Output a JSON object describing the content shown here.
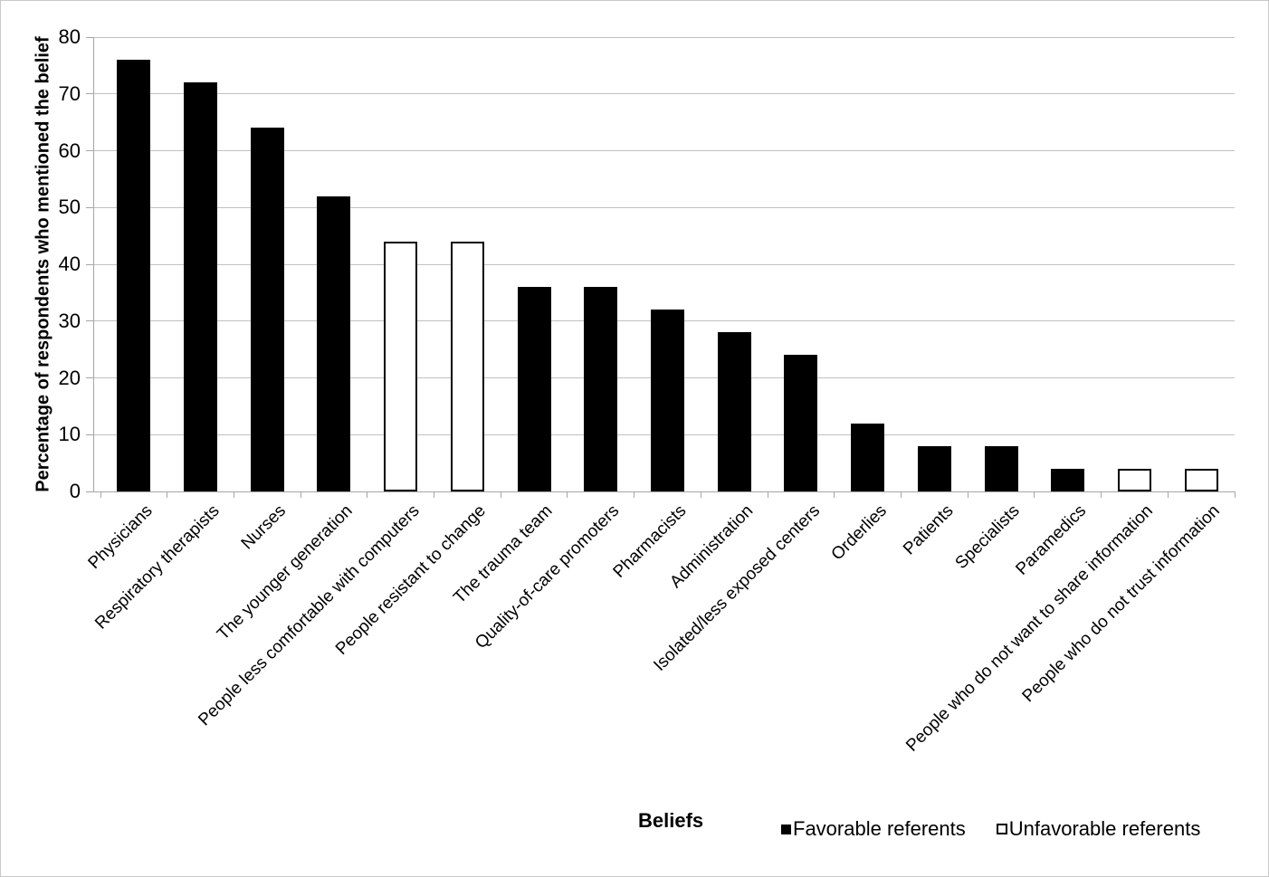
{
  "chart_data": {
    "type": "bar",
    "title": "",
    "xlabel": "Beliefs",
    "ylabel": "Percentage of respondents who mentioned the belief",
    "ylim": [
      0,
      80
    ],
    "yticks": [
      0,
      10,
      20,
      30,
      40,
      50,
      60,
      70,
      80
    ],
    "grid": true,
    "legend_position": "bottom",
    "categories": [
      "Physicians",
      "Respiratory therapists",
      "Nurses",
      "The younger generation",
      "People less comfortable with computers",
      "People resistant to change",
      "The trauma team",
      "Quality-of-care promoters",
      "Pharmacists",
      "Administration",
      "Isolated/less exposed centers",
      "Orderlies",
      "Patients",
      "Specialists",
      "Paramedics",
      "People who do not want to share information",
      "People who do not trust information"
    ],
    "values": [
      76,
      72,
      64,
      52,
      44,
      44,
      36,
      36,
      32,
      28,
      24,
      12,
      8,
      8,
      4,
      4,
      4
    ],
    "groups": [
      "favorable",
      "favorable",
      "favorable",
      "favorable",
      "unfavorable",
      "unfavorable",
      "favorable",
      "favorable",
      "favorable",
      "favorable",
      "favorable",
      "favorable",
      "favorable",
      "favorable",
      "favorable",
      "unfavorable",
      "unfavorable"
    ],
    "legend": [
      {
        "label": "Favorable referents",
        "swatch": "filled"
      },
      {
        "label": "Unfavorable referents",
        "swatch": "outline"
      }
    ],
    "colors": {
      "favorable_fill": "#000000",
      "unfavorable_fill": "#ffffff",
      "bar_border": "#000000",
      "gridline": "#c0c0c0",
      "axis": "#a6a6a6",
      "text": "#000000"
    }
  }
}
